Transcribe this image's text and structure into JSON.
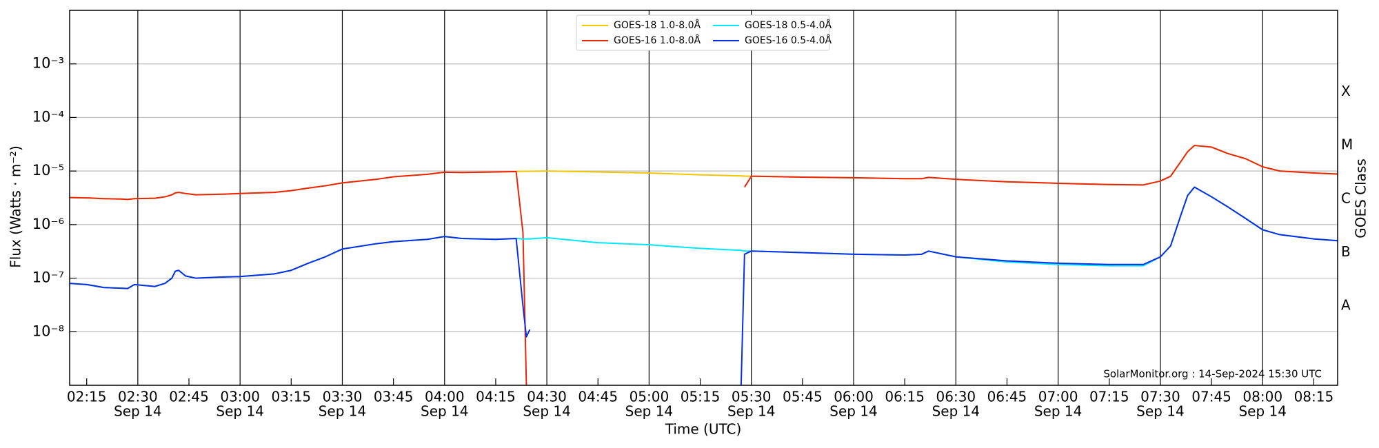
{
  "chart_data": {
    "type": "line",
    "ylog": true,
    "grid": true,
    "legend": "upper center",
    "ylabel": "Flux (Watts · m⁻²)",
    "xlabel": "Time (UTC)",
    "xtick_sublabel": "Sep 14",
    "y2label": "GOES Class",
    "annotation": "SolarMonitor.org : 14-Sep-2024 15:30 UTC",
    "xlim": [
      "02:10",
      "08:22"
    ],
    "xticks": [
      "02:15",
      "02:30",
      "02:45",
      "03:00",
      "03:15",
      "03:30",
      "03:45",
      "04:00",
      "04:15",
      "04:30",
      "04:45",
      "05:00",
      "05:15",
      "05:30",
      "05:45",
      "06:00",
      "06:15",
      "06:30",
      "06:45",
      "07:00",
      "07:15",
      "07:30",
      "07:45",
      "08:00",
      "08:15"
    ],
    "ylim": [
      1e-09,
      0.01
    ],
    "yticks": [
      {
        "value": 1e-08,
        "label": "10⁻⁸"
      },
      {
        "value": 1e-07,
        "label": "10⁻⁷"
      },
      {
        "value": 1e-06,
        "label": "10⁻⁶"
      },
      {
        "value": 1e-05,
        "label": "10⁻⁵"
      },
      {
        "value": 0.0001,
        "label": "10⁻⁴"
      },
      {
        "value": 0.001,
        "label": "10⁻³"
      }
    ],
    "y2lim": [
      1e-09,
      0.01
    ],
    "y2ticks": [
      {
        "value": 3e-08,
        "label": "A"
      },
      {
        "value": 3e-07,
        "label": "B"
      },
      {
        "value": 3e-06,
        "label": "C"
      },
      {
        "value": 3e-05,
        "label": "M"
      },
      {
        "value": 0.0003,
        "label": "X"
      }
    ],
    "x": [
      "02:10",
      "02:15",
      "02:20",
      "02:25",
      "02:27",
      "02:29",
      "02:35",
      "02:38",
      "02:40",
      "02:41",
      "02:42",
      "02:44",
      "02:47",
      "02:55",
      "03:00",
      "03:10",
      "03:15",
      "03:20",
      "03:25",
      "03:30",
      "03:40",
      "03:45",
      "03:55",
      "04:00",
      "04:05",
      "04:15",
      "04:21",
      "04:23",
      "04:24",
      "04:25",
      "04:30",
      "04:45",
      "05:00",
      "05:15",
      "05:27",
      "05:28",
      "05:30",
      "05:45",
      "06:00",
      "06:15",
      "06:20",
      "06:22",
      "06:30",
      "06:45",
      "07:00",
      "07:15",
      "07:25",
      "07:30",
      "07:33",
      "07:36",
      "07:38",
      "07:40",
      "07:45",
      "07:50",
      "07:55",
      "08:00",
      "08:05",
      "08:15",
      "08:22"
    ],
    "series": [
      {
        "name": "GOES-18 1.0-8.0Å",
        "color": "#f2c500",
        "values": [
          3.2e-06,
          3.15e-06,
          3.05e-06,
          3e-06,
          2.95e-06,
          3.05e-06,
          3.1e-06,
          3.3e-06,
          3.6e-06,
          3.9e-06,
          4e-06,
          3.8e-06,
          3.6e-06,
          3.7e-06,
          3.8e-06,
          4e-06,
          4.3e-06,
          4.8e-06,
          5.3e-06,
          6e-06,
          7e-06,
          7.8e-06,
          8.7e-06,
          9.5e-06,
          9.4e-06,
          9.6e-06,
          9.8e-06,
          9.9e-06,
          9.9e-06,
          9.9e-06,
          1e-05,
          9.6e-06,
          9.2e-06,
          8.5e-06,
          8.1e-06,
          8e-06,
          8e-06,
          7.7e-06,
          7.5e-06,
          7.2e-06,
          7.2e-06,
          7.6e-06,
          7e-06,
          6.3e-06,
          5.9e-06,
          5.6e-06,
          5.5e-06,
          6.5e-06,
          8e-06,
          1.5e-05,
          2.3e-05,
          3e-05,
          2.8e-05,
          2.1e-05,
          1.7e-05,
          1.2e-05,
          1e-05,
          9.2e-06,
          8.8e-06
        ]
      },
      {
        "name": "GOES-16 1.0-8.0Å",
        "color": "#e8260c",
        "values": [
          3.2e-06,
          3.15e-06,
          3.05e-06,
          3e-06,
          2.95e-06,
          3.05e-06,
          3.1e-06,
          3.3e-06,
          3.6e-06,
          3.9e-06,
          4e-06,
          3.8e-06,
          3.6e-06,
          3.7e-06,
          3.8e-06,
          4e-06,
          4.3e-06,
          4.8e-06,
          5.3e-06,
          6e-06,
          7e-06,
          7.8e-06,
          8.7e-06,
          9.5e-06,
          9.4e-06,
          9.6e-06,
          9.8e-06,
          7e-07,
          1e-09,
          null,
          null,
          null,
          null,
          null,
          null,
          5e-06,
          8e-06,
          7.7e-06,
          7.5e-06,
          7.2e-06,
          7.2e-06,
          7.6e-06,
          7e-06,
          6.3e-06,
          5.9e-06,
          5.6e-06,
          5.5e-06,
          6.5e-06,
          8e-06,
          1.5e-05,
          2.3e-05,
          3e-05,
          2.8e-05,
          2.1e-05,
          1.7e-05,
          1.2e-05,
          1e-05,
          9.2e-06,
          8.8e-06
        ]
      },
      {
        "name": "GOES-18 0.5-4.0Å",
        "color": "#00e8f5",
        "values": [
          8e-08,
          7.6e-08,
          6.7e-08,
          6.5e-08,
          6.4e-08,
          7.6e-08,
          7e-08,
          8e-08,
          1e-07,
          1.35e-07,
          1.4e-07,
          1.1e-07,
          1e-07,
          1.05e-07,
          1.07e-07,
          1.2e-07,
          1.4e-07,
          1.9e-07,
          2.5e-07,
          3.5e-07,
          4.4e-07,
          4.8e-07,
          5.3e-07,
          6e-07,
          5.5e-07,
          5.3e-07,
          5.5e-07,
          5.4e-07,
          5.4e-07,
          5.4e-07,
          5.7e-07,
          4.6e-07,
          4.2e-07,
          3.6e-07,
          3.3e-07,
          3.2e-07,
          3.2e-07,
          3e-07,
          2.8e-07,
          2.7e-07,
          2.8e-07,
          3.2e-07,
          2.5e-07,
          2e-07,
          1.8e-07,
          1.7e-07,
          1.7e-07,
          2.5e-07,
          4e-07,
          1.5e-06,
          3.5e-06,
          5e-06,
          3.3e-06,
          2.1e-06,
          1.3e-06,
          8e-07,
          6.5e-07,
          5.4e-07,
          5e-07
        ]
      },
      {
        "name": "GOES-16 0.5-4.0Å",
        "color": "#0a2ee0",
        "values": [
          8e-08,
          7.6e-08,
          6.7e-08,
          6.5e-08,
          6.4e-08,
          7.6e-08,
          7e-08,
          8e-08,
          1e-07,
          1.35e-07,
          1.4e-07,
          1.1e-07,
          1e-07,
          1.05e-07,
          1.07e-07,
          1.2e-07,
          1.4e-07,
          1.9e-07,
          2.5e-07,
          3.5e-07,
          4.4e-07,
          4.8e-07,
          5.3e-07,
          6e-07,
          5.5e-07,
          5.3e-07,
          5.5e-07,
          3e-08,
          8e-09,
          1.1e-08,
          null,
          null,
          null,
          null,
          1e-09,
          2.8e-07,
          3.2e-07,
          3e-07,
          2.8e-07,
          2.7e-07,
          2.8e-07,
          3.2e-07,
          2.5e-07,
          2.1e-07,
          1.9e-07,
          1.8e-07,
          1.8e-07,
          2.5e-07,
          4e-07,
          1.5e-06,
          3.5e-06,
          5e-06,
          3.3e-06,
          2.1e-06,
          1.3e-06,
          8e-07,
          6.5e-07,
          5.4e-07,
          5e-07
        ]
      }
    ]
  }
}
